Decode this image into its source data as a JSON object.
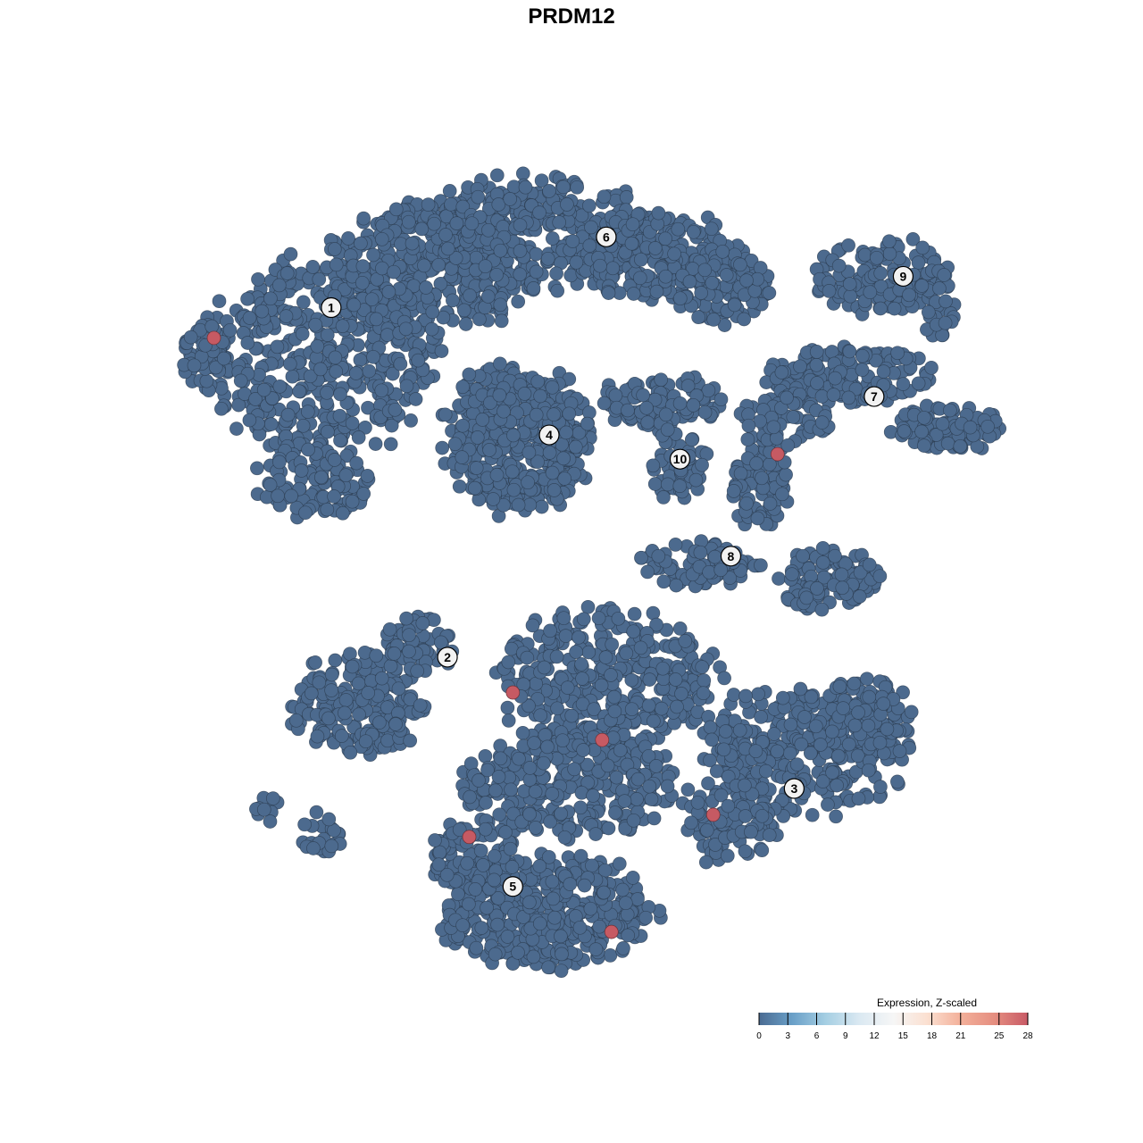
{
  "chart_data": {
    "type": "scatter",
    "title": "PRDM12",
    "xlabel": "",
    "ylabel": "",
    "axes_visible": false,
    "grid": false,
    "xlim": [
      -40,
      40
    ],
    "ylim": [
      -40,
      40
    ],
    "point_color_default": "#4c6a8e",
    "point_color_high": "#c65a63",
    "cluster_labels": [
      {
        "label": "1",
        "x": -25.3,
        "y": 25.9
      },
      {
        "label": "2",
        "x": -14.1,
        "y": -8.7
      },
      {
        "label": "3",
        "x": 19.3,
        "y": -21.7
      },
      {
        "label": "4",
        "x": -4.3,
        "y": 13.3
      },
      {
        "label": "5",
        "x": -7.8,
        "y": -31.4
      },
      {
        "label": "6",
        "x": 1.2,
        "y": 32.9
      },
      {
        "label": "7",
        "x": 27.0,
        "y": 17.1
      },
      {
        "label": "8",
        "x": 13.2,
        "y": 1.3
      },
      {
        "label": "9",
        "x": 29.8,
        "y": 29.0
      },
      {
        "label": "10",
        "x": 8.3,
        "y": 10.9
      }
    ],
    "high_expression_points": [
      {
        "x": -36.6,
        "y": 22.9,
        "value": 28
      },
      {
        "x": 17.7,
        "y": 11.4,
        "value": 28
      },
      {
        "x": -7.8,
        "y": -12.2,
        "value": 28
      },
      {
        "x": 0.8,
        "y": -16.9,
        "value": 28
      },
      {
        "x": 11.5,
        "y": -24.3,
        "value": 28
      },
      {
        "x": -12.0,
        "y": -26.5,
        "value": 28
      },
      {
        "x": 1.7,
        "y": -35.9,
        "value": 28
      }
    ],
    "baseline_value": 0,
    "legend": {
      "title": "Expression, Z-scaled",
      "placement": "bottom-right",
      "range": [
        0,
        28
      ],
      "ticks": [
        0,
        3,
        6,
        9,
        12,
        15,
        18,
        21,
        25,
        28
      ],
      "tick_labels": [
        "0",
        "3",
        "6",
        "9",
        "12",
        "15",
        "18",
        "21",
        "25",
        "28"
      ],
      "colors": [
        "#4a6b92",
        "#6aa0c8",
        "#a6cfe3",
        "#dbe9f2",
        "#f6f6f6",
        "#fbe0d1",
        "#f3b09a",
        "#e58e80",
        "#c85a66"
      ]
    }
  }
}
